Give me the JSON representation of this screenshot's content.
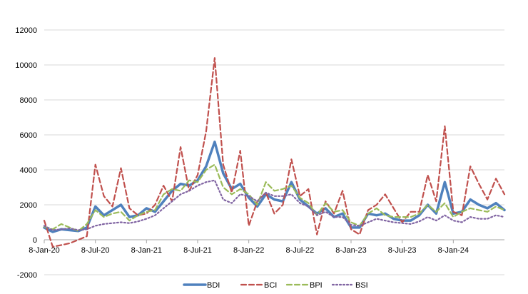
{
  "chart_data": {
    "type": "line",
    "title": "",
    "xlabel": "",
    "ylabel": "",
    "ylim": [
      -2000,
      12000
    ],
    "yticks": [
      -2000,
      0,
      2000,
      4000,
      6000,
      8000,
      10000,
      12000
    ],
    "xlim": [
      0,
      54
    ],
    "xticks": [
      {
        "label": "8-Jan-20",
        "x": 0
      },
      {
        "label": "8-Jul-20",
        "x": 6
      },
      {
        "label": "8-Jan-21",
        "x": 12
      },
      {
        "label": "8-Jul-21",
        "x": 18
      },
      {
        "label": "8-Jan-22",
        "x": 24
      },
      {
        "label": "8-Jul-22",
        "x": 30
      },
      {
        "label": "8-Jan-23",
        "x": 36
      },
      {
        "label": "8-Jul-23",
        "x": 42
      },
      {
        "label": "8-Jan-24",
        "x": 48
      }
    ],
    "grid": true,
    "legend_position": "bottom",
    "x_unit": "months since 8-Jan-20",
    "series": [
      {
        "name": "BDI",
        "color": "#4F81BD",
        "style": "solid",
        "points": [
          [
            0,
            700
          ],
          [
            1,
            450
          ],
          [
            2,
            600
          ],
          [
            3,
            550
          ],
          [
            4,
            500
          ],
          [
            5,
            700
          ],
          [
            6,
            1900
          ],
          [
            7,
            1400
          ],
          [
            8,
            1700
          ],
          [
            9,
            2000
          ],
          [
            10,
            1300
          ],
          [
            11,
            1400
          ],
          [
            12,
            1800
          ],
          [
            13,
            1600
          ],
          [
            14,
            2200
          ],
          [
            15,
            2800
          ],
          [
            16,
            3200
          ],
          [
            17,
            3100
          ],
          [
            18,
            3400
          ],
          [
            19,
            4200
          ],
          [
            20,
            5600
          ],
          [
            21,
            3800
          ],
          [
            22,
            2900
          ],
          [
            23,
            3200
          ],
          [
            24,
            2400
          ],
          [
            25,
            1900
          ],
          [
            26,
            2600
          ],
          [
            27,
            2300
          ],
          [
            28,
            2200
          ],
          [
            29,
            3300
          ],
          [
            30,
            2300
          ],
          [
            31,
            1900
          ],
          [
            32,
            1500
          ],
          [
            33,
            1800
          ],
          [
            34,
            1300
          ],
          [
            35,
            1500
          ],
          [
            36,
            700
          ],
          [
            37,
            700
          ],
          [
            38,
            1500
          ],
          [
            39,
            1400
          ],
          [
            40,
            1500
          ],
          [
            41,
            1200
          ],
          [
            42,
            1100
          ],
          [
            43,
            1100
          ],
          [
            44,
            1400
          ],
          [
            45,
            2000
          ],
          [
            46,
            1500
          ],
          [
            47,
            3300
          ],
          [
            48,
            1500
          ],
          [
            49,
            1600
          ],
          [
            50,
            2300
          ],
          [
            51,
            2000
          ],
          [
            52,
            1800
          ],
          [
            53,
            2100
          ],
          [
            54,
            1700
          ]
        ]
      },
      {
        "name": "BCI",
        "color": "#C0504D",
        "style": "dashed",
        "points": [
          [
            0,
            1100
          ],
          [
            1,
            -400
          ],
          [
            2,
            -300
          ],
          [
            3,
            -200
          ],
          [
            4,
            0
          ],
          [
            5,
            200
          ],
          [
            6,
            4300
          ],
          [
            7,
            2500
          ],
          [
            8,
            1900
          ],
          [
            9,
            4100
          ],
          [
            10,
            1800
          ],
          [
            11,
            1400
          ],
          [
            12,
            1500
          ],
          [
            13,
            2000
          ],
          [
            14,
            3100
          ],
          [
            15,
            2200
          ],
          [
            16,
            5300
          ],
          [
            17,
            2800
          ],
          [
            18,
            3700
          ],
          [
            19,
            6200
          ],
          [
            20,
            10400
          ],
          [
            21,
            4300
          ],
          [
            22,
            2700
          ],
          [
            23,
            5100
          ],
          [
            24,
            800
          ],
          [
            25,
            2200
          ],
          [
            26,
            2700
          ],
          [
            27,
            1500
          ],
          [
            28,
            2000
          ],
          [
            29,
            4600
          ],
          [
            30,
            2500
          ],
          [
            31,
            2900
          ],
          [
            32,
            300
          ],
          [
            33,
            2200
          ],
          [
            34,
            1500
          ],
          [
            35,
            2800
          ],
          [
            36,
            600
          ],
          [
            37,
            300
          ],
          [
            38,
            1700
          ],
          [
            39,
            2000
          ],
          [
            40,
            2600
          ],
          [
            41,
            1800
          ],
          [
            42,
            1000
          ],
          [
            43,
            1600
          ],
          [
            44,
            1600
          ],
          [
            45,
            3700
          ],
          [
            46,
            2200
          ],
          [
            47,
            6500
          ],
          [
            48,
            1600
          ],
          [
            49,
            1400
          ],
          [
            50,
            4200
          ],
          [
            51,
            3200
          ],
          [
            52,
            2300
          ],
          [
            53,
            3500
          ],
          [
            54,
            2600
          ]
        ]
      },
      {
        "name": "BPI",
        "color": "#9BBB59",
        "style": "dashed",
        "points": [
          [
            0,
            750
          ],
          [
            1,
            600
          ],
          [
            2,
            900
          ],
          [
            3,
            700
          ],
          [
            4,
            500
          ],
          [
            5,
            900
          ],
          [
            6,
            1700
          ],
          [
            7,
            1300
          ],
          [
            8,
            1500
          ],
          [
            9,
            1600
          ],
          [
            10,
            1100
          ],
          [
            11,
            1400
          ],
          [
            12,
            1600
          ],
          [
            13,
            1700
          ],
          [
            14,
            2600
          ],
          [
            15,
            2900
          ],
          [
            16,
            2800
          ],
          [
            17,
            3400
          ],
          [
            18,
            3300
          ],
          [
            19,
            4000
          ],
          [
            20,
            4300
          ],
          [
            21,
            3000
          ],
          [
            22,
            2600
          ],
          [
            23,
            2900
          ],
          [
            24,
            2600
          ],
          [
            25,
            2000
          ],
          [
            26,
            3300
          ],
          [
            27,
            2800
          ],
          [
            28,
            2900
          ],
          [
            29,
            3100
          ],
          [
            30,
            2400
          ],
          [
            31,
            2100
          ],
          [
            32,
            1400
          ],
          [
            33,
            2100
          ],
          [
            34,
            1600
          ],
          [
            35,
            1700
          ],
          [
            36,
            1000
          ],
          [
            37,
            800
          ],
          [
            38,
            1500
          ],
          [
            39,
            1800
          ],
          [
            40,
            1400
          ],
          [
            41,
            1300
          ],
          [
            42,
            1300
          ],
          [
            43,
            1300
          ],
          [
            44,
            1500
          ],
          [
            45,
            2000
          ],
          [
            46,
            1600
          ],
          [
            47,
            2100
          ],
          [
            48,
            1300
          ],
          [
            49,
            1600
          ],
          [
            50,
            1800
          ],
          [
            51,
            1700
          ],
          [
            52,
            1600
          ],
          [
            53,
            1900
          ],
          [
            54,
            1700
          ]
        ]
      },
      {
        "name": "BSI",
        "color": "#8064A2",
        "style": "dotted",
        "points": [
          [
            0,
            800
          ],
          [
            1,
            550
          ],
          [
            2,
            600
          ],
          [
            3,
            650
          ],
          [
            4,
            550
          ],
          [
            5,
            600
          ],
          [
            6,
            800
          ],
          [
            7,
            900
          ],
          [
            8,
            950
          ],
          [
            9,
            1000
          ],
          [
            10,
            950
          ],
          [
            11,
            1050
          ],
          [
            12,
            1200
          ],
          [
            13,
            1400
          ],
          [
            14,
            1800
          ],
          [
            15,
            2200
          ],
          [
            16,
            2600
          ],
          [
            17,
            2800
          ],
          [
            18,
            3100
          ],
          [
            19,
            3300
          ],
          [
            20,
            3400
          ],
          [
            21,
            2300
          ],
          [
            22,
            2100
          ],
          [
            23,
            2600
          ],
          [
            24,
            2500
          ],
          [
            25,
            2200
          ],
          [
            26,
            2700
          ],
          [
            27,
            2500
          ],
          [
            28,
            2500
          ],
          [
            29,
            2600
          ],
          [
            30,
            2100
          ],
          [
            31,
            1900
          ],
          [
            32,
            1400
          ],
          [
            33,
            1600
          ],
          [
            34,
            1300
          ],
          [
            35,
            1300
          ],
          [
            36,
            850
          ],
          [
            37,
            800
          ],
          [
            38,
            1000
          ],
          [
            39,
            1200
          ],
          [
            40,
            1100
          ],
          [
            41,
            1000
          ],
          [
            42,
            950
          ],
          [
            43,
            900
          ],
          [
            44,
            1050
          ],
          [
            45,
            1300
          ],
          [
            46,
            1100
          ],
          [
            47,
            1400
          ],
          [
            48,
            1100
          ],
          [
            49,
            1000
          ],
          [
            50,
            1300
          ],
          [
            51,
            1200
          ],
          [
            52,
            1200
          ],
          [
            53,
            1400
          ],
          [
            54,
            1300
          ]
        ]
      }
    ]
  }
}
